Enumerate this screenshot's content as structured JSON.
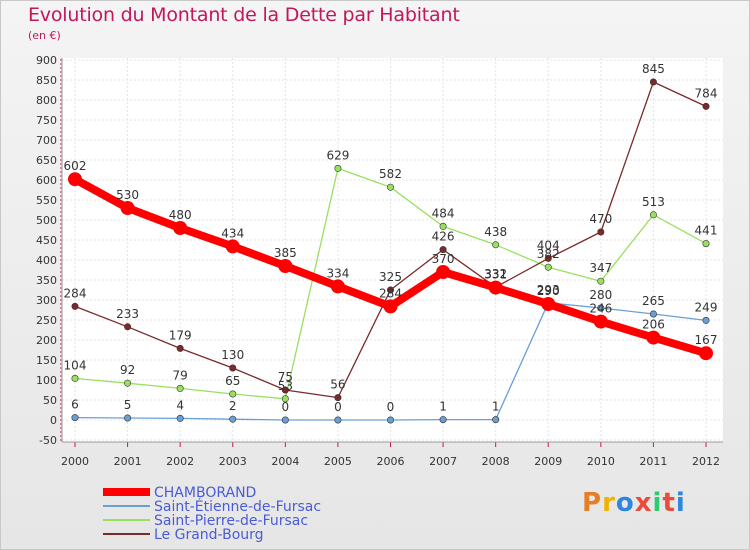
{
  "header": {
    "title": "Evolution du Montant de la Dette par Habitant",
    "subtitle": "(en €)"
  },
  "logo": {
    "text": "Proxiti",
    "letter_colors": [
      "#e67e22",
      "#f0b400",
      "#2e86de",
      "#e74c3c",
      "#2ecc71",
      "#e74c3c",
      "#2e86de"
    ]
  },
  "chart_data": {
    "type": "line",
    "x": [
      "2000",
      "2001",
      "2002",
      "2003",
      "2004",
      "2005",
      "2006",
      "2007",
      "2008",
      "2009",
      "2010",
      "2011",
      "2012"
    ],
    "ylim": [
      -50,
      900
    ],
    "yticks": [
      "-50",
      "0",
      "50",
      "100",
      "150",
      "200",
      "250",
      "300",
      "350",
      "400",
      "450",
      "500",
      "550",
      "600",
      "650",
      "700",
      "750",
      "800",
      "850",
      "900"
    ],
    "grid": true,
    "series": [
      {
        "name": "CHAMBORAND",
        "color": "#ff0000",
        "values": [
          602,
          530,
          480,
          434,
          385,
          334,
          284,
          370,
          331,
          290,
          246,
          206,
          167
        ]
      },
      {
        "name": "Saint-Étienne-de-Fursac",
        "color": "#6a9fd4",
        "values": [
          6,
          5,
          4,
          2,
          0,
          0,
          0,
          1,
          1,
          293,
          280,
          265,
          249
        ]
      },
      {
        "name": "Saint-Pierre-de-Fursac",
        "color": "#99e060",
        "values": [
          104,
          92,
          79,
          65,
          53,
          629,
          582,
          484,
          438,
          382,
          347,
          513,
          441
        ]
      },
      {
        "name": "Le Grand-Bourg",
        "color": "#7a2a2a",
        "values": [
          284,
          233,
          179,
          130,
          75,
          56,
          325,
          426,
          332,
          404,
          470,
          845,
          784
        ]
      }
    ],
    "data_labels": [
      [
        "602",
        "530",
        "480",
        "434",
        "385",
        "334",
        "284",
        "370",
        "331",
        "290",
        "246",
        "206",
        "167"
      ],
      [
        "6",
        "5",
        "4",
        "2",
        "0",
        "0",
        "0",
        "1",
        "1",
        "293",
        "280",
        "265",
        "249"
      ],
      [
        "104",
        "92",
        "79",
        "65",
        "53",
        "629",
        "582",
        "484",
        "438",
        "382",
        "347",
        "513",
        "441"
      ],
      [
        "284",
        "233",
        "179",
        "130",
        "75",
        "56",
        "325",
        "426",
        "332",
        "404",
        "470",
        "845",
        "784"
      ]
    ],
    "legend_position": "bottom-left"
  }
}
